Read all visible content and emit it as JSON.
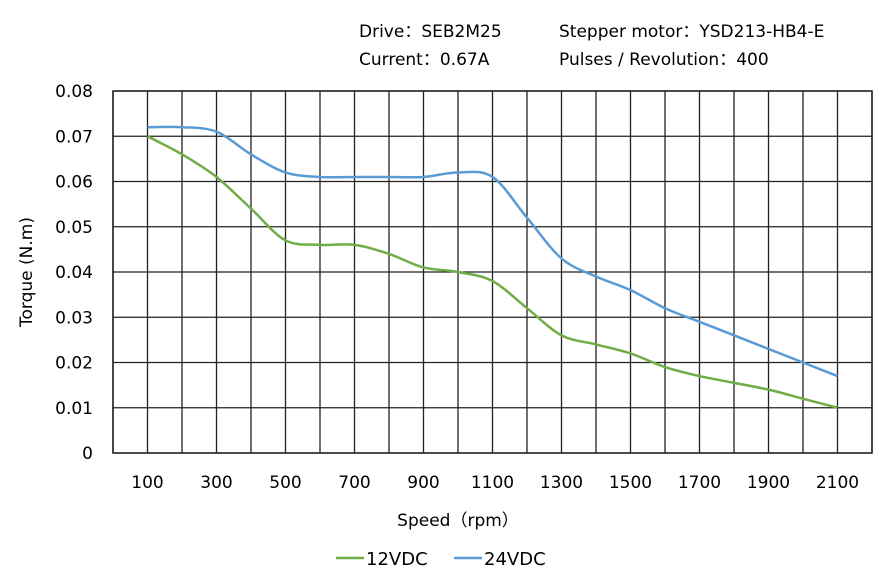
{
  "header": {
    "drive": "Drive：SEB2M25",
    "motor": "Stepper motor：YSD213-HB4-E",
    "current": "Current：0.67A",
    "pulses": "Pulses / Revolution：400"
  },
  "chart_data": {
    "type": "line",
    "title": "",
    "xlabel": "Speed（rpm）",
    "ylabel": "Torque (N.m)",
    "xlim": [
      0,
      2200
    ],
    "ylim": [
      0,
      0.08
    ],
    "grid": true,
    "legend_position": "bottom",
    "x_ticks": [
      100,
      300,
      500,
      700,
      900,
      1100,
      1300,
      1500,
      1700,
      1900,
      2100
    ],
    "y_ticks": [
      "0",
      "0.01",
      "0.02",
      "0.03",
      "0.04",
      "0.05",
      "0.06",
      "0.07",
      "0.08"
    ],
    "x": [
      100,
      200,
      300,
      400,
      500,
      600,
      700,
      800,
      900,
      1000,
      1100,
      1200,
      1300,
      1400,
      1500,
      1600,
      1700,
      1800,
      1900,
      2000,
      2100
    ],
    "series": [
      {
        "name": "12VDC",
        "color": "#70ad47",
        "values": [
          0.07,
          0.066,
          0.061,
          0.054,
          0.047,
          0.046,
          0.046,
          0.044,
          0.041,
          0.04,
          0.038,
          0.032,
          0.026,
          0.024,
          0.022,
          0.019,
          0.017,
          0.0155,
          0.014,
          0.012,
          0.01
        ]
      },
      {
        "name": "24VDC",
        "color": "#5b9bd5",
        "values": [
          0.072,
          0.072,
          0.071,
          0.066,
          0.062,
          0.061,
          0.061,
          0.061,
          0.061,
          0.062,
          0.061,
          0.052,
          0.043,
          0.039,
          0.036,
          0.032,
          0.029,
          0.026,
          0.023,
          0.02,
          0.017
        ]
      }
    ]
  }
}
